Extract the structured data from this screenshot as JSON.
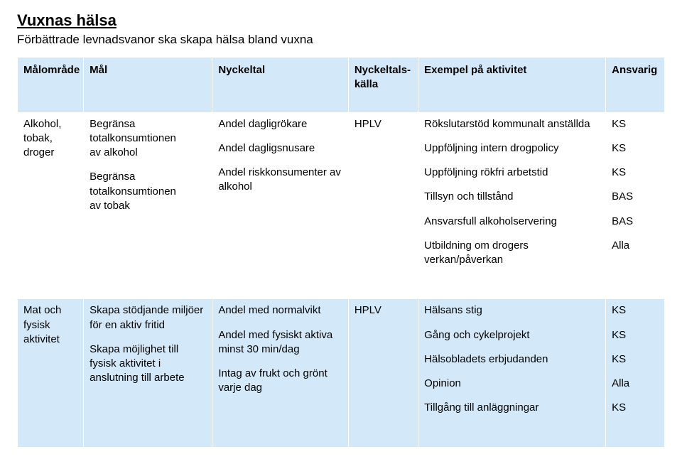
{
  "colors": {
    "header_bg": "#d3e8f9",
    "alt_row_bg": "#d3e8f9",
    "text": "#000000",
    "page_bg": "#ffffff"
  },
  "title": "Vuxnas hälsa",
  "subtitle": "Förbättrade levnadsvanor ska skapa hälsa bland vuxna",
  "columns": {
    "c1": "Målområde",
    "c2": "Mål",
    "c3": "Nyckeltal",
    "c4_line1": "Nyckeltals-",
    "c4_line2": "källa",
    "c5": "Exempel på aktivitet",
    "c6": "Ansvarig"
  },
  "row1": {
    "malomrade_l1": "Alkohol,",
    "malomrade_l2": "tobak,",
    "malomrade_l3": "droger",
    "mal_b1_l1": "Begränsa",
    "mal_b1_l2": "totalkonsumtionen",
    "mal_b1_l3": "av alkohol",
    "mal_b2_l1": "Begränsa",
    "mal_b2_l2": "totalkonsumtionen",
    "mal_b2_l3": "av tobak",
    "nyckeltal_b1": "Andel dagligrökare",
    "nyckeltal_b2": "Andel dagligsnusare",
    "nyckeltal_b3_l1": "Andel riskkonsumenter av",
    "nyckeltal_b3_l2": "alkohol",
    "kalla": "HPLV",
    "akt1": "Rökslutarstöd kommunalt anställda",
    "akt2": "Uppföljning intern drogpolicy",
    "akt3": "Uppföljning rökfri arbetstid",
    "akt4": "Tillsyn och tillstånd",
    "akt5": "Ansvarsfull alkoholservering",
    "akt6_l1": "Utbildning om drogers",
    "akt6_l2": "verkan/påverkan",
    "ansv1": "KS",
    "ansv2": "KS",
    "ansv3": "KS",
    "ansv4": "BAS",
    "ansv5": "BAS",
    "ansv6": "Alla"
  },
  "row2": {
    "malomrade_l1": "Mat och",
    "malomrade_l2": "fysisk",
    "malomrade_l3": "aktivitet",
    "mal_b1_l1": "Skapa stödjande miljöer",
    "mal_b1_l2": "för en aktiv fritid",
    "mal_b2_l1": "Skapa möjlighet till",
    "mal_b2_l2": "fysisk aktivitet i",
    "mal_b2_l3": "anslutning till arbete",
    "nyckeltal_b1": "Andel  med normalvikt",
    "nyckeltal_b2_l1": "Andel med fysiskt aktiva",
    "nyckeltal_b2_l2": "minst 30 min/dag",
    "nyckeltal_b3_l1": "Intag av frukt och grönt",
    "nyckeltal_b3_l2": "varje dag",
    "kalla": "HPLV",
    "akt1": "Hälsans stig",
    "akt2": "Gång och cykelprojekt",
    "akt3": "Hälsobladets erbjudanden",
    "akt4": "Opinion",
    "akt5": "Tillgång till anläggningar",
    "ansv1": "KS",
    "ansv2": "KS",
    "ansv3": "KS",
    "ansv4": "Alla",
    "ansv5": "KS"
  }
}
